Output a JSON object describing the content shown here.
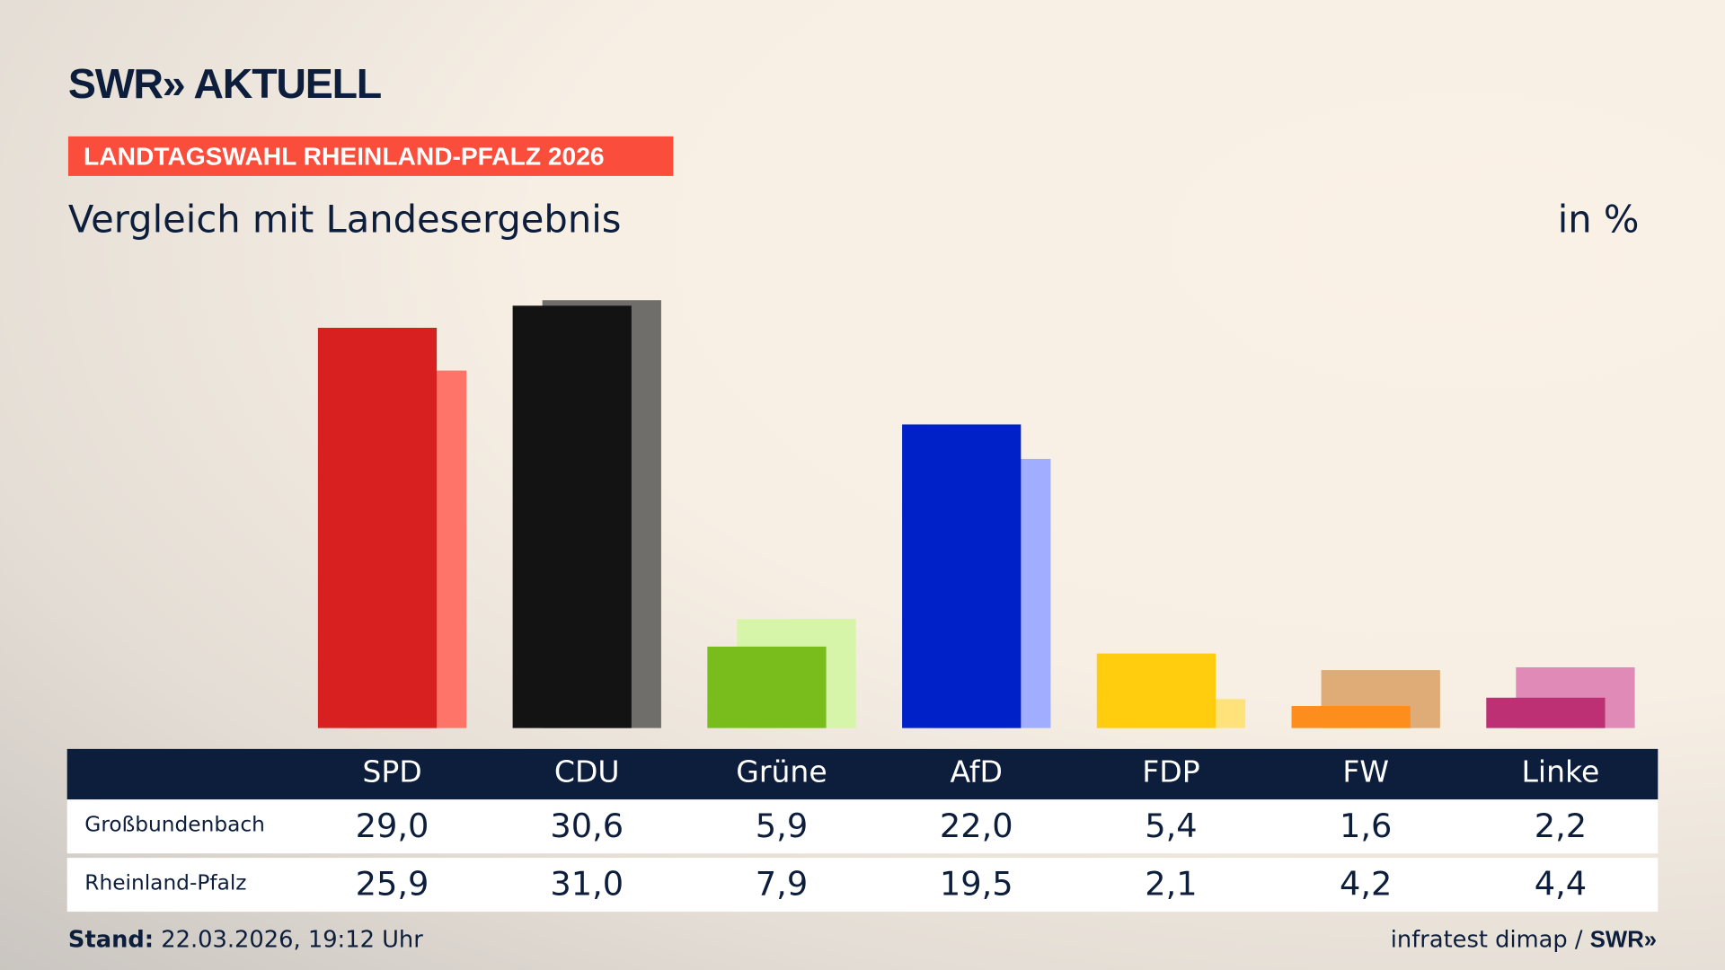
{
  "header": {
    "logo": "SWR» AKTUELL",
    "banner": "LANDTAGSWAHL RHEINLAND-PFALZ 2026",
    "subtitle": "Vergleich mit Landesergebnis",
    "unit": "in %"
  },
  "chart_data": {
    "type": "bar",
    "categories": [
      "SPD",
      "CDU",
      "Grüne",
      "AfD",
      "FDP",
      "FW",
      "Linke"
    ],
    "series": [
      {
        "name": "Großbundenbach",
        "values": [
          "29,0",
          "30,6",
          "5,9",
          "22,0",
          "5,4",
          "1,6",
          "2,2"
        ],
        "colors": [
          "#d7201f",
          "#131313",
          "#78bd1b",
          "#0021c7",
          "#ffcc0e",
          "#fd8d1c",
          "#bd3174"
        ]
      },
      {
        "name": "Rheinland-Pfalz",
        "values": [
          "25,9",
          "31,0",
          "7,9",
          "19,5",
          "2,1",
          "4,2",
          "4,4"
        ],
        "colors": [
          "#ff7469",
          "#706e6b",
          "#d6f5a8",
          "#a1aeff",
          "#ffe37a",
          "#dfab76",
          "#e08ab7"
        ]
      }
    ]
  },
  "footer": {
    "stand_label": "Stand:",
    "stand_value": " 22.03.2026, 19:12 Uhr",
    "source": "infratest dimap / ",
    "source_logo": "SWR»"
  }
}
